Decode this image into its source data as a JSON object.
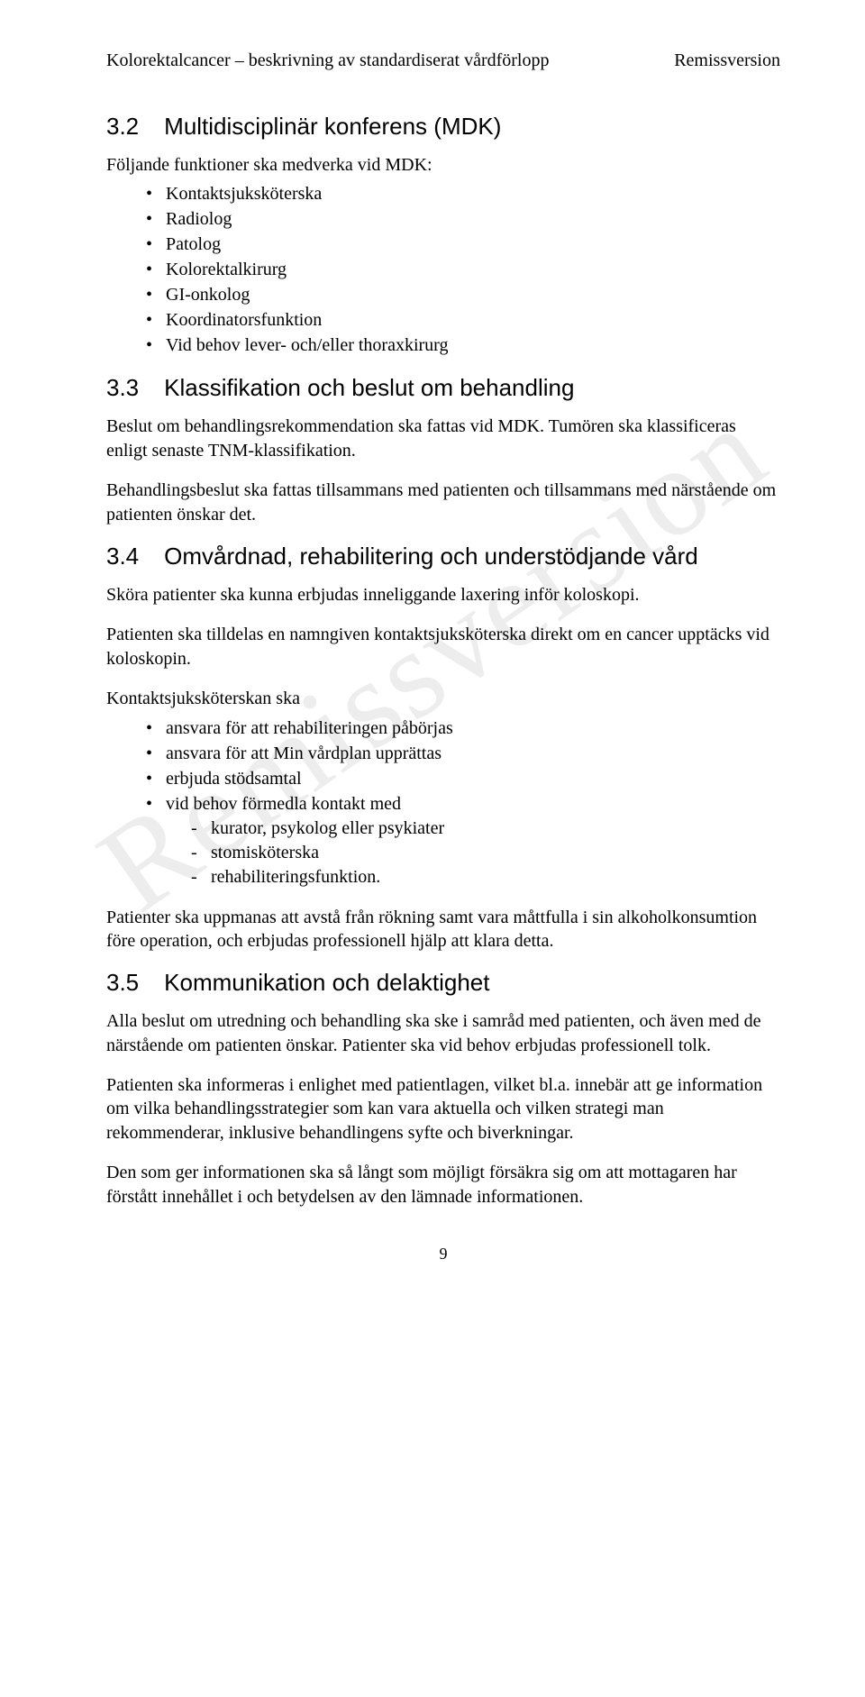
{
  "watermark": "Remissversion",
  "runhead": {
    "left": "Kolorektalcancer – beskrivning av standardiserat vårdförlopp",
    "right": "Remissversion"
  },
  "sections": {
    "s32": {
      "num": "3.2",
      "title": "Multidisciplinär konferens (MDK)",
      "lead": "Följande funktioner ska medverka vid MDK:",
      "items": [
        "Kontaktsjuksköterska",
        "Radiolog",
        "Patolog",
        "Kolorektalkirurg",
        "GI-onkolog",
        "Koordinatorsfunktion",
        "Vid behov lever- och/eller thoraxkirurg"
      ]
    },
    "s33": {
      "num": "3.3",
      "title": "Klassifikation och beslut om behandling",
      "p1": "Beslut om behandlingsrekommendation ska fattas vid MDK. Tumören ska klassificeras enligt senaste TNM-klassifikation.",
      "p2": "Behandlingsbeslut ska fattas tillsammans med patienten och tillsammans med närstående om patienten önskar det."
    },
    "s34": {
      "num": "3.4",
      "title": "Omvårdnad, rehabilitering och understödjande vård",
      "p1": "Sköra patienter ska kunna erbjudas inneliggande laxering inför koloskopi.",
      "p2": "Patienten ska tilldelas en namngiven kontaktsjuksköterska direkt om en cancer upptäcks vid koloskopin.",
      "lead2": "Kontaktsjuksköterskan ska",
      "items": [
        {
          "text": "ansvara för att rehabiliteringen påbörjas"
        },
        {
          "text": "ansvara för att Min vårdplan upprättas"
        },
        {
          "text": "erbjuda stödsamtal"
        },
        {
          "text": "vid behov förmedla kontakt med",
          "sub": [
            "kurator, psykolog eller psykiater",
            "stomisköterska",
            "rehabiliteringsfunktion."
          ]
        }
      ],
      "p3": "Patienter ska uppmanas att avstå från rökning samt vara måttfulla i sin alkoholkonsumtion före operation, och erbjudas professionell hjälp att klara detta."
    },
    "s35": {
      "num": "3.5",
      "title": "Kommunikation och delaktighet",
      "p1": "Alla beslut om utredning och behandling ska ske i samråd med patienten, och även med de närstående om patienten önskar. Patienter ska vid behov erbjudas professionell tolk.",
      "p2": "Patienten ska informeras i enlighet med patientlagen, vilket bl.a. innebär att ge information om vilka behandlingsstrategier som kan vara aktuella och vilken strategi man rekommenderar, inklusive behandlingens syfte och biverkningar.",
      "p3": "Den som ger informationen ska så långt som möjligt försäkra sig om att mottagaren har förstått innehållet i och betydelsen av den lämnade informationen."
    }
  },
  "pagenum": "9"
}
